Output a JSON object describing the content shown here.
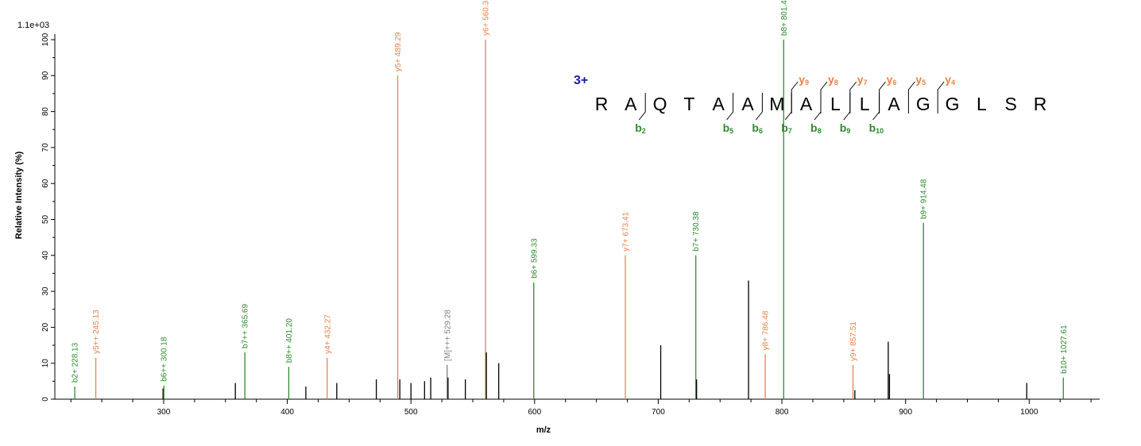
{
  "chart_data": {
    "type": "bar",
    "chart_subtype": "ms2-spectrum",
    "scale_label": "1.1e+03",
    "xlabel": "m/z",
    "ylabel": "Relative  Intensity (%)",
    "xlim": [
      212,
      1057
    ],
    "ylim": [
      0,
      100
    ],
    "x_ticks": [
      300,
      400,
      500,
      600,
      700,
      800,
      900,
      1000
    ],
    "y_ticks": [
      0,
      10,
      20,
      30,
      40,
      50,
      60,
      70,
      80,
      90,
      100
    ],
    "colors": {
      "b": "#2e8b2e",
      "y": "#e8834a",
      "precursor": "#808080",
      "other": "#000000",
      "charge": "#1a1aa8"
    },
    "peaks": [
      {
        "mz": 228.13,
        "intensity": 3.5,
        "ion": "b",
        "label": "b2+ 228.13"
      },
      {
        "mz": 245.13,
        "intensity": 11.5,
        "ion": "y",
        "label": "y5++ 245.13"
      },
      {
        "mz": 299.5,
        "intensity": 3,
        "ion": "other"
      },
      {
        "mz": 300.18,
        "intensity": 3.8,
        "ion": "b",
        "label": "b6++ 300.18"
      },
      {
        "mz": 358,
        "intensity": 4.5,
        "ion": "other"
      },
      {
        "mz": 365.69,
        "intensity": 13,
        "ion": "b",
        "label": "b7++ 365.69"
      },
      {
        "mz": 401.2,
        "intensity": 9,
        "ion": "b",
        "label": "b8++ 401.20"
      },
      {
        "mz": 415,
        "intensity": 3.5,
        "ion": "other"
      },
      {
        "mz": 432.27,
        "intensity": 11.5,
        "ion": "y",
        "label": "y4+ 432.27"
      },
      {
        "mz": 440,
        "intensity": 4.5,
        "ion": "other"
      },
      {
        "mz": 472,
        "intensity": 5.5,
        "ion": "other"
      },
      {
        "mz": 489.29,
        "intensity": 90,
        "ion": "y",
        "label": "y5+ 489.29"
      },
      {
        "mz": 491,
        "intensity": 5.5,
        "ion": "other"
      },
      {
        "mz": 500,
        "intensity": 4.5,
        "ion": "other"
      },
      {
        "mz": 511,
        "intensity": 5,
        "ion": "other"
      },
      {
        "mz": 516,
        "intensity": 6,
        "ion": "other"
      },
      {
        "mz": 529.28,
        "intensity": 9.5,
        "ion": "precursor",
        "label": "[M]+++ 529.28"
      },
      {
        "mz": 530,
        "intensity": 6,
        "ion": "other"
      },
      {
        "mz": 544,
        "intensity": 5.5,
        "ion": "other"
      },
      {
        "mz": 560.32,
        "intensity": 100,
        "ion": "y",
        "label": "y6+ 560.32"
      },
      {
        "mz": 561,
        "intensity": 13,
        "ion": "other"
      },
      {
        "mz": 571,
        "intensity": 10,
        "ion": "other"
      },
      {
        "mz": 599.33,
        "intensity": 32.5,
        "ion": "b",
        "label": "b6+ 599.33"
      },
      {
        "mz": 673.41,
        "intensity": 40,
        "ion": "y",
        "label": "y7+ 673.41"
      },
      {
        "mz": 702,
        "intensity": 15,
        "ion": "other"
      },
      {
        "mz": 730.38,
        "intensity": 40,
        "ion": "b",
        "label": "b7+ 730.38"
      },
      {
        "mz": 731,
        "intensity": 5.5,
        "ion": "other"
      },
      {
        "mz": 773,
        "intensity": 33,
        "ion": "other"
      },
      {
        "mz": 786.48,
        "intensity": 12.5,
        "ion": "y",
        "label": "y8+ 786.48"
      },
      {
        "mz": 801.42,
        "intensity": 100,
        "ion": "b",
        "label": "b8+ 801.42"
      },
      {
        "mz": 857.51,
        "intensity": 9.5,
        "ion": "y",
        "label": "y9+ 857.51"
      },
      {
        "mz": 859,
        "intensity": 2.5,
        "ion": "other"
      },
      {
        "mz": 886,
        "intensity": 16,
        "ion": "other"
      },
      {
        "mz": 887,
        "intensity": 7,
        "ion": "other"
      },
      {
        "mz": 914.48,
        "intensity": 49,
        "ion": "b",
        "label": "b9+ 914.48"
      },
      {
        "mz": 998,
        "intensity": 4.5,
        "ion": "other"
      },
      {
        "mz": 1027.61,
        "intensity": 6,
        "ion": "b",
        "label": "b10+ 1027.61"
      }
    ]
  },
  "peptide": {
    "charge": "3+",
    "sequence": [
      "R",
      "A",
      "Q",
      "T",
      "A",
      "A",
      "M",
      "A",
      "L",
      "L",
      "A",
      "G",
      "G",
      "L",
      "S",
      "R"
    ],
    "y_ions": [
      {
        "after": 7,
        "letter": "y",
        "sub": "9"
      },
      {
        "after": 8,
        "letter": "y",
        "sub": "8"
      },
      {
        "after": 9,
        "letter": "y",
        "sub": "7"
      },
      {
        "after": 10,
        "letter": "y",
        "sub": "6"
      },
      {
        "after": 11,
        "letter": "y",
        "sub": "5"
      },
      {
        "after": 12,
        "letter": "y",
        "sub": "4"
      }
    ],
    "b_ions": [
      {
        "after": 2,
        "letter": "b",
        "sub": "2"
      },
      {
        "after": 5,
        "letter": "b",
        "sub": "5"
      },
      {
        "after": 6,
        "letter": "b",
        "sub": "6"
      },
      {
        "after": 7,
        "letter": "b",
        "sub": "7"
      },
      {
        "after": 8,
        "letter": "b",
        "sub": "8"
      },
      {
        "after": 9,
        "letter": "b",
        "sub": "9"
      },
      {
        "after": 10,
        "letter": "b",
        "sub": "10"
      }
    ]
  }
}
